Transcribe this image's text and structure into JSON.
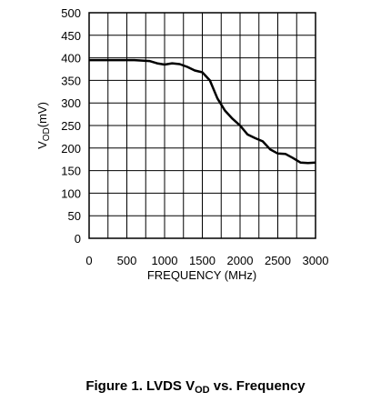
{
  "chart_data": {
    "type": "line",
    "xlabel": "FREQUENCY (MHz)",
    "ylabel_main": "V",
    "ylabel_sub": "OD",
    "ylabel_unit": "(mV)",
    "xlim": [
      0,
      3000
    ],
    "ylim": [
      0,
      500
    ],
    "x_ticks": [
      0,
      500,
      1000,
      1500,
      2000,
      2500,
      3000
    ],
    "y_ticks": [
      0,
      50,
      100,
      150,
      200,
      250,
      300,
      350,
      400,
      450,
      500
    ],
    "grid": true,
    "line_color": "#000000",
    "series": [
      {
        "x": [
          0,
          200,
          400,
          600,
          800,
          900,
          1000,
          1100,
          1200,
          1300,
          1400,
          1500,
          1600,
          1700,
          1800,
          1900,
          2000,
          2100,
          2200,
          2300,
          2400,
          2500,
          2600,
          2700,
          2800,
          2900,
          3000
        ],
        "y": [
          395,
          395,
          395,
          395,
          393,
          388,
          385,
          388,
          386,
          380,
          372,
          368,
          350,
          310,
          283,
          265,
          250,
          230,
          222,
          215,
          197,
          188,
          187,
          178,
          168,
          167,
          168
        ]
      }
    ]
  },
  "caption": {
    "prefix": "Figure 1. LVDS V",
    "sub": "OD",
    "suffix": " vs. Frequency"
  }
}
